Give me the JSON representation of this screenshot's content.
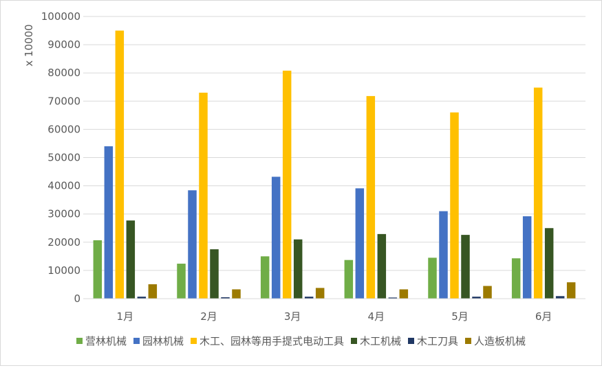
{
  "chart_data": {
    "type": "bar",
    "title": "",
    "xlabel": "",
    "ylabel": "x 10000",
    "ylim": [
      0,
      100000
    ],
    "yticks": [
      0,
      10000,
      20000,
      30000,
      40000,
      50000,
      60000,
      70000,
      80000,
      90000,
      100000
    ],
    "grid": true,
    "legend_position": "bottom",
    "categories": [
      "1月",
      "2月",
      "3月",
      "4月",
      "5月",
      "6月"
    ],
    "series": [
      {
        "name": "营林机械",
        "color": "#70ad47",
        "values": [
          20700,
          12400,
          15000,
          13700,
          14500,
          14300
        ]
      },
      {
        "name": "园林机械",
        "color": "#4472c4",
        "values": [
          54000,
          38400,
          43200,
          39100,
          31000,
          29200
        ]
      },
      {
        "name": "木工、园林等用手提式电动工具",
        "color": "#ffc000",
        "values": [
          95000,
          73000,
          80800,
          71800,
          66000,
          74800
        ]
      },
      {
        "name": "木工机械",
        "color": "#375623",
        "values": [
          27700,
          17500,
          21000,
          22900,
          22600,
          25000
        ]
      },
      {
        "name": "木工刀具",
        "color": "#203864",
        "values": [
          700,
          500,
          700,
          400,
          700,
          900
        ]
      },
      {
        "name": "人造板机械",
        "color": "#9c7a00",
        "values": [
          5100,
          3300,
          3800,
          3300,
          4500,
          5800
        ]
      }
    ]
  }
}
